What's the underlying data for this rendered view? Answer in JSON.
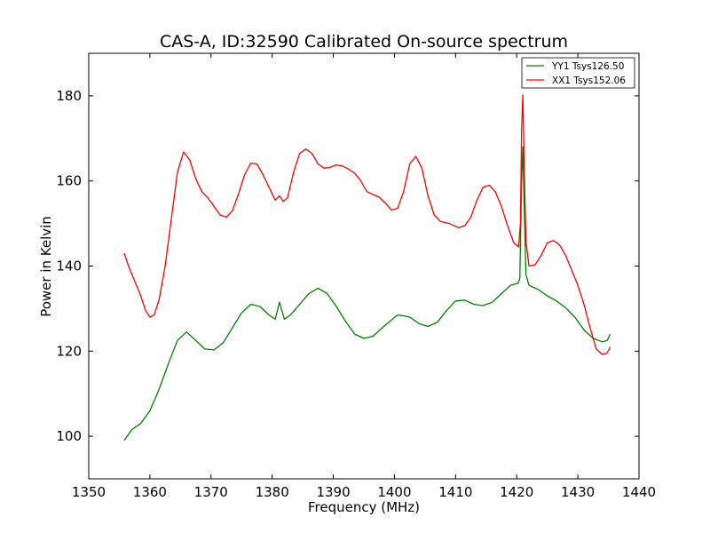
{
  "chart_data": {
    "type": "line",
    "title": "CAS-A, ID:32590 Calibrated On-source spectrum",
    "xlabel": "Frequency (MHz)",
    "ylabel": "Power in Kelvin",
    "xlim": [
      1350,
      1440
    ],
    "ylim": [
      90,
      190
    ],
    "xticks": [
      1350,
      1360,
      1370,
      1380,
      1390,
      1400,
      1410,
      1420,
      1430,
      1440
    ],
    "yticks": [
      100,
      120,
      140,
      160,
      180
    ],
    "grid": false,
    "legend_position": "top-right",
    "series": [
      {
        "name": "YY1 Tsys126.50",
        "color": "#008000",
        "points": [
          [
            1355.8,
            99
          ],
          [
            1357,
            101.5
          ],
          [
            1358.5,
            103
          ],
          [
            1360,
            106
          ],
          [
            1361.5,
            111
          ],
          [
            1363,
            117
          ],
          [
            1364.5,
            122.5
          ],
          [
            1366,
            124.5
          ],
          [
            1367.5,
            122.5
          ],
          [
            1369,
            120.5
          ],
          [
            1370.5,
            120.3
          ],
          [
            1372,
            122
          ],
          [
            1373.5,
            125.5
          ],
          [
            1375,
            129
          ],
          [
            1376.5,
            131
          ],
          [
            1378,
            130.5
          ],
          [
            1379.5,
            128.5
          ],
          [
            1380.5,
            127.5
          ],
          [
            1381.2,
            131.5
          ],
          [
            1382,
            127.5
          ],
          [
            1383,
            128.5
          ],
          [
            1384.5,
            131
          ],
          [
            1386,
            133.5
          ],
          [
            1387.5,
            134.8
          ],
          [
            1389,
            133.5
          ],
          [
            1390.5,
            130.5
          ],
          [
            1392,
            127
          ],
          [
            1393.5,
            124
          ],
          [
            1395,
            123
          ],
          [
            1396.5,
            123.5
          ],
          [
            1398,
            125.5
          ],
          [
            1399.5,
            127.3
          ],
          [
            1400.5,
            128.5
          ],
          [
            1401.5,
            128.3
          ],
          [
            1402.5,
            128
          ],
          [
            1404,
            126.5
          ],
          [
            1405.5,
            125.8
          ],
          [
            1407,
            126.8
          ],
          [
            1408.5,
            129.5
          ],
          [
            1410,
            131.8
          ],
          [
            1411.5,
            132
          ],
          [
            1413,
            131
          ],
          [
            1414.5,
            130.7
          ],
          [
            1416,
            131.5
          ],
          [
            1417.5,
            133.5
          ],
          [
            1419,
            135.5
          ],
          [
            1420.2,
            136
          ],
          [
            1420.5,
            137
          ],
          [
            1420.8,
            160
          ],
          [
            1421,
            168
          ],
          [
            1421.2,
            155
          ],
          [
            1421.5,
            138
          ],
          [
            1422,
            135.5
          ],
          [
            1423.5,
            134.5
          ],
          [
            1425,
            133
          ],
          [
            1426.5,
            131.8
          ],
          [
            1428,
            130.2
          ],
          [
            1429.5,
            128
          ],
          [
            1431,
            125
          ],
          [
            1432.5,
            123
          ],
          [
            1434,
            122.2
          ],
          [
            1434.8,
            122.5
          ],
          [
            1435.3,
            124
          ]
        ]
      },
      {
        "name": "XX1 Tsys152.06",
        "color": "#ff0000",
        "points": [
          [
            1355.8,
            143
          ],
          [
            1356.5,
            140
          ],
          [
            1357.5,
            136.5
          ],
          [
            1358.5,
            133
          ],
          [
            1359.3,
            129.5
          ],
          [
            1360,
            128
          ],
          [
            1360.7,
            128.5
          ],
          [
            1361.5,
            132
          ],
          [
            1362.5,
            140
          ],
          [
            1363.5,
            151
          ],
          [
            1364.5,
            162
          ],
          [
            1365.5,
            166.8
          ],
          [
            1366.5,
            165
          ],
          [
            1367.5,
            160.5
          ],
          [
            1368.5,
            157.5
          ],
          [
            1369.5,
            156
          ],
          [
            1370.5,
            154
          ],
          [
            1371.5,
            152
          ],
          [
            1372.5,
            151.5
          ],
          [
            1373.5,
            153
          ],
          [
            1374.5,
            157
          ],
          [
            1375.5,
            161.5
          ],
          [
            1376.5,
            164.2
          ],
          [
            1377.5,
            164
          ],
          [
            1378.5,
            161.5
          ],
          [
            1379.5,
            158.5
          ],
          [
            1380.5,
            155.5
          ],
          [
            1381.2,
            156.5
          ],
          [
            1381.8,
            155.2
          ],
          [
            1382.5,
            156
          ],
          [
            1383.5,
            162
          ],
          [
            1384.5,
            166.5
          ],
          [
            1385.5,
            167.5
          ],
          [
            1386.5,
            166.5
          ],
          [
            1387.5,
            164
          ],
          [
            1388.5,
            163
          ],
          [
            1389.5,
            163.2
          ],
          [
            1390.5,
            163.8
          ],
          [
            1391.5,
            163.5
          ],
          [
            1392.5,
            162.8
          ],
          [
            1393.5,
            161.8
          ],
          [
            1394.5,
            160
          ],
          [
            1395.5,
            157.5
          ],
          [
            1396.5,
            156.8
          ],
          [
            1397.5,
            156.2
          ],
          [
            1398.5,
            154.8
          ],
          [
            1399.5,
            153.2
          ],
          [
            1400.5,
            153.5
          ],
          [
            1401.5,
            157.5
          ],
          [
            1402.5,
            164
          ],
          [
            1403.5,
            165.8
          ],
          [
            1404.5,
            163
          ],
          [
            1405.5,
            156.5
          ],
          [
            1406.5,
            152
          ],
          [
            1407.5,
            150.5
          ],
          [
            1409,
            150
          ],
          [
            1410.5,
            149
          ],
          [
            1411.5,
            149.5
          ],
          [
            1412.5,
            151.5
          ],
          [
            1413.5,
            155.5
          ],
          [
            1414.5,
            158.5
          ],
          [
            1415.5,
            159
          ],
          [
            1416.5,
            157.5
          ],
          [
            1417.5,
            154
          ],
          [
            1418.5,
            149.5
          ],
          [
            1419.5,
            145.5
          ],
          [
            1420.3,
            144.5
          ],
          [
            1420.6,
            150
          ],
          [
            1420.8,
            172
          ],
          [
            1421,
            180.2
          ],
          [
            1421.2,
            165
          ],
          [
            1421.5,
            146
          ],
          [
            1422,
            140
          ],
          [
            1423,
            140.3
          ],
          [
            1424,
            142.5
          ],
          [
            1425,
            145.5
          ],
          [
            1426,
            146
          ],
          [
            1427,
            145
          ],
          [
            1428,
            142.5
          ],
          [
            1429,
            139
          ],
          [
            1430,
            135.5
          ],
          [
            1431,
            131
          ],
          [
            1432,
            125.5
          ],
          [
            1433,
            120.5
          ],
          [
            1434,
            119.2
          ],
          [
            1434.8,
            119.6
          ],
          [
            1435.3,
            121
          ]
        ]
      }
    ]
  }
}
